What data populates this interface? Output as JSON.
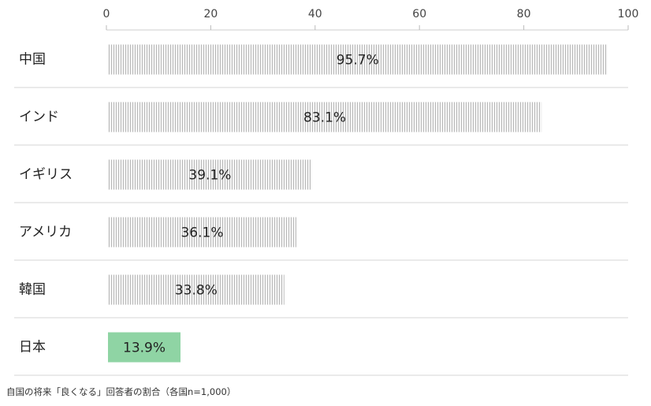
{
  "chart_data": {
    "type": "bar",
    "orientation": "horizontal",
    "categories": [
      "中国",
      "インド",
      "イギリス",
      "アメリカ",
      "韓国",
      "日本"
    ],
    "values": [
      95.7,
      83.1,
      39.1,
      36.1,
      33.8,
      13.9
    ],
    "data_labels": [
      "95.7%",
      "83.1%",
      "39.1%",
      "36.1%",
      "33.8%",
      "13.9%"
    ],
    "xlim": [
      0,
      100
    ],
    "xticks": [
      0,
      20,
      40,
      60,
      80,
      100
    ],
    "xaxis_position": "top",
    "highlight_category": "日本",
    "colors": {
      "bar_stripe": "#b8b8b8",
      "bar_fill": "#f6f6f6",
      "highlight": "#8fd4a4",
      "separator": "#d6d6d6"
    },
    "grid": false,
    "legend": "none"
  },
  "caption": "自国の将来「良くなる」回答者の割合（各国n=1,000）"
}
